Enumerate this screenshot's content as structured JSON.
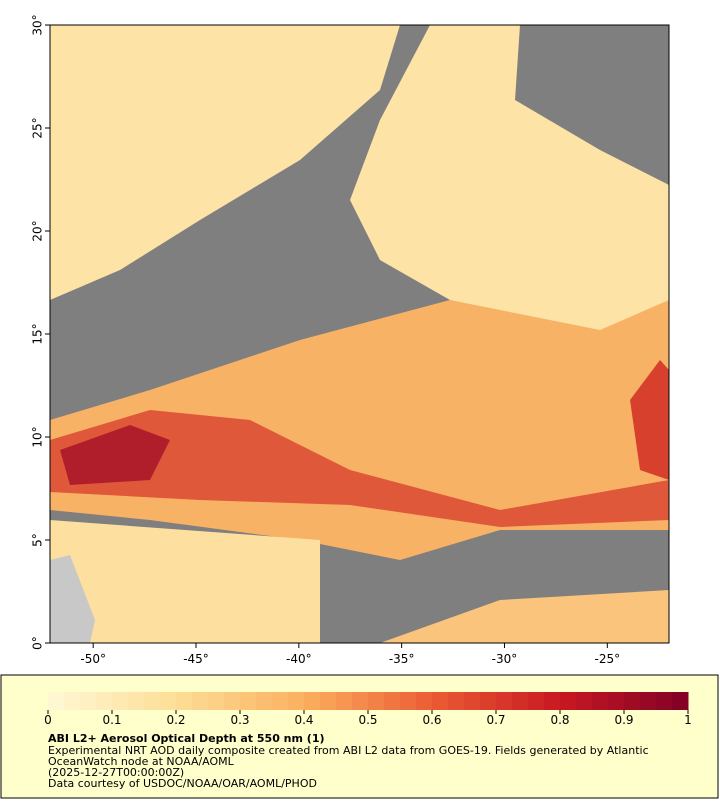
{
  "map": {
    "xlim": [
      -52.1,
      -22
    ],
    "ylim": [
      0,
      30
    ],
    "xticks": [
      {
        "value": -50,
        "label": "-50°"
      },
      {
        "value": -45,
        "label": "-45°"
      },
      {
        "value": -40,
        "label": "-40°"
      },
      {
        "value": -35,
        "label": "-35°"
      },
      {
        "value": -30,
        "label": "-30°"
      },
      {
        "value": -25,
        "label": "-25°"
      }
    ],
    "yticks": [
      {
        "value": 0,
        "label": "0°"
      },
      {
        "value": 5,
        "label": "5°"
      },
      {
        "value": 10,
        "label": "10°"
      },
      {
        "value": 15,
        "label": "15°"
      },
      {
        "value": 20,
        "label": "20°"
      },
      {
        "value": 25,
        "label": "25°"
      },
      {
        "value": 30,
        "label": "30°"
      }
    ]
  },
  "colorbar": {
    "lim": [
      0,
      1
    ],
    "ticks": [
      0,
      0.1,
      0.2,
      0.3,
      0.4,
      0.5,
      0.6,
      0.7,
      0.8,
      0.9,
      1
    ],
    "title": "ABI L2+ Aerosol Optical Depth at 550 nm (1)",
    "caption": [
      "Experimental NRT AOD daily composite created from ABI L2 data from GOES-19. Fields generated by Atlantic",
      "OceanWatch node at NOAA/AOML",
      "(2025-12-27T00:00:00Z)",
      "Data courtesy of USDOC/NOAA/OAR/AOML/PHOD"
    ]
  }
}
